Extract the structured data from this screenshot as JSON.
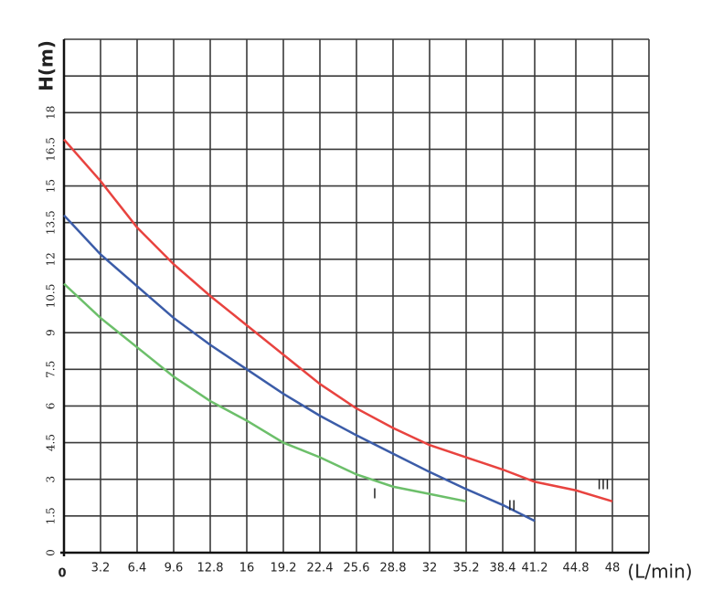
{
  "chart_data": {
    "type": "line",
    "y_label": "H(m)",
    "x_label": "(L/min)",
    "x": [
      0,
      3.2,
      6.4,
      9.6,
      12.8,
      16,
      19.2,
      22.4,
      25.6,
      28.8,
      32,
      35.2,
      38.4,
      41.2,
      44.8,
      48
    ],
    "series": [
      {
        "name": "I",
        "color": "#6cbf6a",
        "values": [
          11.0,
          9.6,
          8.4,
          7.2,
          6.2,
          5.4,
          4.5,
          3.9,
          3.2,
          2.7,
          2.4,
          2.1,
          null,
          null,
          null,
          null
        ]
      },
      {
        "name": "II",
        "color": "#3b5ca8",
        "values": [
          13.8,
          12.2,
          10.9,
          9.6,
          8.5,
          7.5,
          6.5,
          5.6,
          4.8,
          4.05,
          3.3,
          2.6,
          1.95,
          1.3,
          null,
          null
        ]
      },
      {
        "name": "III",
        "color": "#e8433f",
        "values": [
          16.9,
          15.2,
          13.3,
          11.8,
          10.5,
          9.3,
          8.1,
          6.9,
          5.9,
          5.1,
          4.4,
          3.9,
          3.4,
          2.9,
          2.55,
          2.1
        ]
      }
    ],
    "xlim": [
      0,
      51.2
    ],
    "ylim": [
      0,
      21
    ],
    "xticks": [
      0,
      3.2,
      6.4,
      9.6,
      12.8,
      16,
      19.2,
      22.4,
      25.6,
      28.8,
      32,
      35.2,
      38.4,
      41.2,
      44.8,
      48
    ],
    "yticks": [
      0,
      1.5,
      3,
      4.5,
      6,
      7.5,
      9,
      10.5,
      12,
      13.5,
      15,
      16.5,
      18
    ],
    "grid": true
  }
}
